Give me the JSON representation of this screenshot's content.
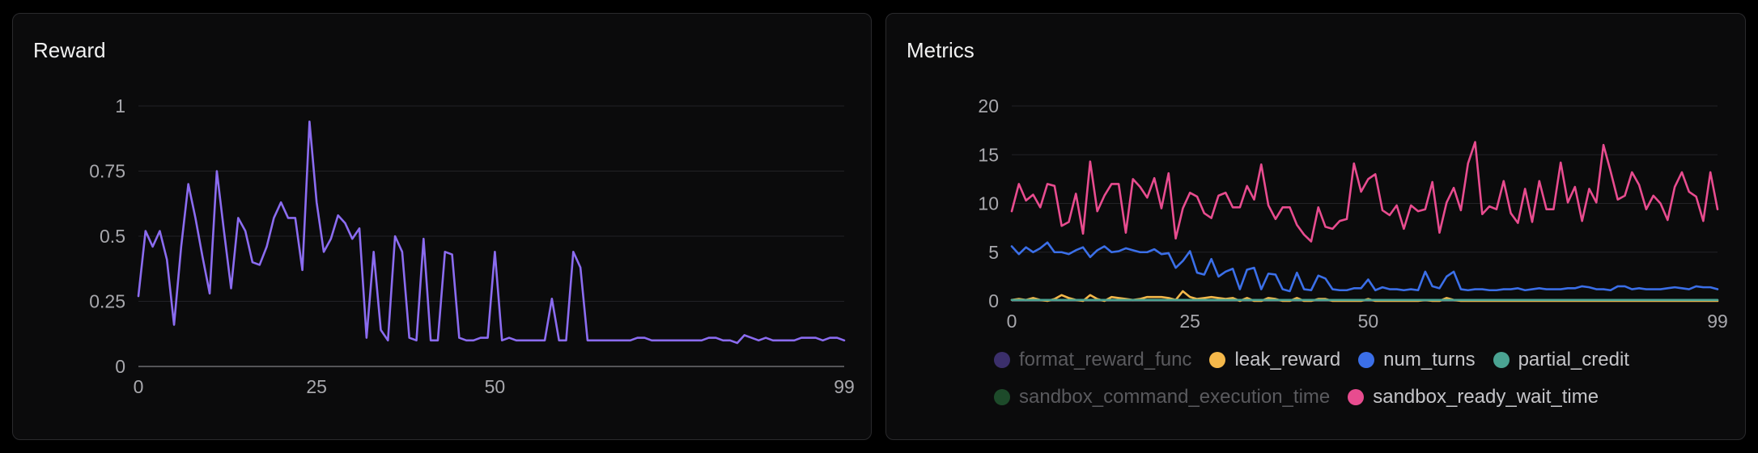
{
  "panels": {
    "reward": {
      "title": "Reward"
    },
    "metrics": {
      "title": "Metrics"
    }
  },
  "chart_data": [
    {
      "type": "line",
      "title": "Reward",
      "xlim": [
        0,
        99
      ],
      "ylim": [
        0,
        1
      ],
      "xticks": [
        0,
        25,
        50,
        99
      ],
      "yticks": [
        0,
        0.25,
        0.5,
        0.75,
        1
      ],
      "ytick_labels": [
        "0",
        "0.25",
        "0.5",
        "0.75",
        "1"
      ],
      "grid": true,
      "series": [
        {
          "color": "#8b6cf0",
          "x": [
            0,
            1,
            2,
            3,
            4,
            5,
            6,
            7,
            8,
            9,
            10,
            11,
            12,
            13,
            14,
            15,
            16,
            17,
            18,
            19,
            20,
            21,
            22,
            23,
            24,
            25,
            26,
            27,
            28,
            29,
            30,
            31,
            32,
            33,
            34,
            35,
            36,
            37,
            38,
            39,
            40,
            41,
            42,
            43,
            44,
            45,
            46,
            47,
            48,
            49,
            50,
            51,
            52,
            53,
            54,
            55,
            56,
            57,
            58,
            59,
            60,
            61,
            62,
            63,
            64,
            65,
            66,
            67,
            68,
            69,
            70,
            71,
            72,
            73,
            74,
            75,
            76,
            77,
            78,
            79,
            80,
            81,
            82,
            83,
            84,
            85,
            86,
            87,
            88,
            89,
            90,
            91,
            92,
            93,
            94,
            95,
            96,
            97,
            98,
            99
          ],
          "values": [
            0.27,
            0.52,
            0.46,
            0.52,
            0.41,
            0.16,
            0.46,
            0.7,
            0.57,
            0.42,
            0.28,
            0.75,
            0.52,
            0.3,
            0.57,
            0.52,
            0.4,
            0.39,
            0.46,
            0.57,
            0.63,
            0.57,
            0.57,
            0.37,
            0.94,
            0.63,
            0.44,
            0.49,
            0.58,
            0.55,
            0.49,
            0.53,
            0.11,
            0.44,
            0.14,
            0.1,
            0.5,
            0.44,
            0.11,
            0.1,
            0.49,
            0.1,
            0.1,
            0.44,
            0.43,
            0.11,
            0.1,
            0.1,
            0.11,
            0.11,
            0.44,
            0.1,
            0.11,
            0.1,
            0.1,
            0.1,
            0.1,
            0.1,
            0.26,
            0.1,
            0.1,
            0.44,
            0.38,
            0.1,
            0.1,
            0.1,
            0.1,
            0.1,
            0.1,
            0.1,
            0.11,
            0.11,
            0.1,
            0.1,
            0.1,
            0.1,
            0.1,
            0.1,
            0.1,
            0.1,
            0.11,
            0.11,
            0.1,
            0.1,
            0.09,
            0.12,
            0.11,
            0.1,
            0.11,
            0.1,
            0.1,
            0.1,
            0.1,
            0.11,
            0.11,
            0.11,
            0.1,
            0.11,
            0.11,
            0.1
          ]
        }
      ]
    },
    {
      "type": "line",
      "title": "Metrics",
      "xlim": [
        0,
        99
      ],
      "ylim": [
        0,
        20
      ],
      "xticks": [
        0,
        25,
        50,
        99
      ],
      "yticks": [
        0,
        5,
        10,
        15,
        20
      ],
      "ytick_labels": [
        "0",
        "5",
        "10",
        "15",
        "20"
      ],
      "grid": true,
      "legend": "bottom",
      "series": [
        {
          "name": "format_reward_func",
          "color": "#3b2f6b",
          "hidden": true,
          "values": []
        },
        {
          "name": "leak_reward",
          "color": "#f5b84a",
          "hidden": false,
          "values": [
            0.1,
            0.2,
            0.1,
            0.3,
            0.1,
            0.0,
            0.2,
            0.6,
            0.3,
            0.1,
            0.0,
            0.6,
            0.2,
            0.0,
            0.4,
            0.3,
            0.2,
            0.1,
            0.2,
            0.4,
            0.4,
            0.4,
            0.3,
            0.1,
            1.0,
            0.4,
            0.2,
            0.3,
            0.4,
            0.3,
            0.2,
            0.3,
            0.0,
            0.3,
            0.0,
            0.0,
            0.3,
            0.2,
            0.0,
            0.0,
            0.3,
            0.0,
            0.0,
            0.2,
            0.2,
            0.0,
            0.0,
            0.0,
            0.0,
            0.0,
            0.2,
            0.0,
            0.0,
            0.0,
            0.0,
            0.0,
            0.0,
            0.0,
            0.1,
            0.0,
            0.0,
            0.3,
            0.1,
            0.0,
            0.0,
            0.0,
            0.0,
            0.0,
            0.0,
            0.0,
            0.0,
            0.0,
            0.0,
            0.0,
            0.0,
            0.0,
            0.0,
            0.0,
            0.0,
            0.0,
            0.0,
            0.0,
            0.0,
            0.0,
            0.0,
            0.0,
            0.0,
            0.0,
            0.0,
            0.0,
            0.0,
            0.0,
            0.0,
            0.0,
            0.0,
            0.0,
            0.0,
            0.0,
            0.0,
            0.0
          ]
        },
        {
          "name": "num_turns",
          "color": "#3b6fe8",
          "hidden": false,
          "values": [
            5.6,
            4.8,
            5.5,
            5.0,
            5.4,
            6.0,
            5.0,
            5.0,
            4.8,
            5.2,
            5.5,
            4.5,
            5.2,
            5.6,
            5.0,
            5.1,
            5.4,
            5.2,
            5.0,
            5.0,
            5.3,
            4.8,
            4.9,
            3.4,
            4.1,
            5.1,
            2.9,
            2.7,
            4.3,
            2.5,
            3.0,
            3.3,
            1.2,
            3.2,
            3.4,
            1.2,
            2.8,
            2.7,
            1.2,
            1.0,
            2.9,
            1.2,
            1.1,
            2.6,
            2.3,
            1.2,
            1.1,
            1.1,
            1.3,
            1.3,
            2.2,
            1.1,
            1.4,
            1.2,
            1.2,
            1.1,
            1.2,
            1.1,
            3.0,
            1.5,
            1.3,
            2.5,
            3.0,
            1.2,
            1.1,
            1.2,
            1.2,
            1.1,
            1.1,
            1.2,
            1.2,
            1.3,
            1.1,
            1.2,
            1.3,
            1.2,
            1.2,
            1.2,
            1.3,
            1.3,
            1.5,
            1.4,
            1.2,
            1.2,
            1.1,
            1.5,
            1.5,
            1.2,
            1.3,
            1.2,
            1.2,
            1.2,
            1.3,
            1.4,
            1.3,
            1.2,
            1.5,
            1.4,
            1.4,
            1.2
          ]
        },
        {
          "name": "partial_credit",
          "color": "#4aa392",
          "hidden": false,
          "values": [
            0.1,
            0.1,
            0.1,
            0.1,
            0.1,
            0.1,
            0.1,
            0.1,
            0.1,
            0.1,
            0.1,
            0.1,
            0.1,
            0.1,
            0.1,
            0.1,
            0.1,
            0.1,
            0.1,
            0.1,
            0.1,
            0.1,
            0.1,
            0.1,
            0.1,
            0.1,
            0.1,
            0.1,
            0.1,
            0.1,
            0.1,
            0.1,
            0.1,
            0.1,
            0.1,
            0.1,
            0.1,
            0.1,
            0.1,
            0.1,
            0.1,
            0.1,
            0.1,
            0.1,
            0.1,
            0.1,
            0.1,
            0.1,
            0.1,
            0.1,
            0.1,
            0.1,
            0.1,
            0.1,
            0.1,
            0.1,
            0.1,
            0.1,
            0.1,
            0.1,
            0.1,
            0.1,
            0.1,
            0.1,
            0.1,
            0.1,
            0.1,
            0.1,
            0.1,
            0.1,
            0.1,
            0.1,
            0.1,
            0.1,
            0.1,
            0.1,
            0.1,
            0.1,
            0.1,
            0.1,
            0.1,
            0.1,
            0.1,
            0.1,
            0.1,
            0.1,
            0.1,
            0.1,
            0.1,
            0.1,
            0.1,
            0.1,
            0.1,
            0.1,
            0.1,
            0.1,
            0.1,
            0.1,
            0.1,
            0.1
          ]
        },
        {
          "name": "sandbox_command_execution_time",
          "color": "#1d4a2a",
          "hidden": true,
          "values": []
        },
        {
          "name": "sandbox_ready_wait_time",
          "color": "#e84c8f",
          "hidden": false,
          "values": [
            9.2,
            12.0,
            10.3,
            10.9,
            9.6,
            12.0,
            11.8,
            7.7,
            8.1,
            11.0,
            6.9,
            14.3,
            9.2,
            10.8,
            12.0,
            12.0,
            7.0,
            12.5,
            11.7,
            10.6,
            12.6,
            9.5,
            13.1,
            6.4,
            9.5,
            11.1,
            10.7,
            9.0,
            8.5,
            10.8,
            11.1,
            9.6,
            9.6,
            11.8,
            10.4,
            14.0,
            9.8,
            8.4,
            9.6,
            9.6,
            7.8,
            6.8,
            6.1,
            9.6,
            7.6,
            7.4,
            8.2,
            8.4,
            14.1,
            11.2,
            12.5,
            13.0,
            9.3,
            8.8,
            9.8,
            7.4,
            9.8,
            9.2,
            9.4,
            12.2,
            7.0,
            10.1,
            11.6,
            9.3,
            14.1,
            16.3,
            8.9,
            9.7,
            9.4,
            12.3,
            9.0,
            8.0,
            11.5,
            8.1,
            12.3,
            9.4,
            9.4,
            14.2,
            10.1,
            11.7,
            8.2,
            11.5,
            10.1,
            16.0,
            13.3,
            10.4,
            10.8,
            13.2,
            11.9,
            9.4,
            10.8,
            10.0,
            8.3,
            11.7,
            13.2,
            11.2,
            10.7,
            8.2,
            13.2,
            9.4
          ]
        }
      ]
    }
  ]
}
